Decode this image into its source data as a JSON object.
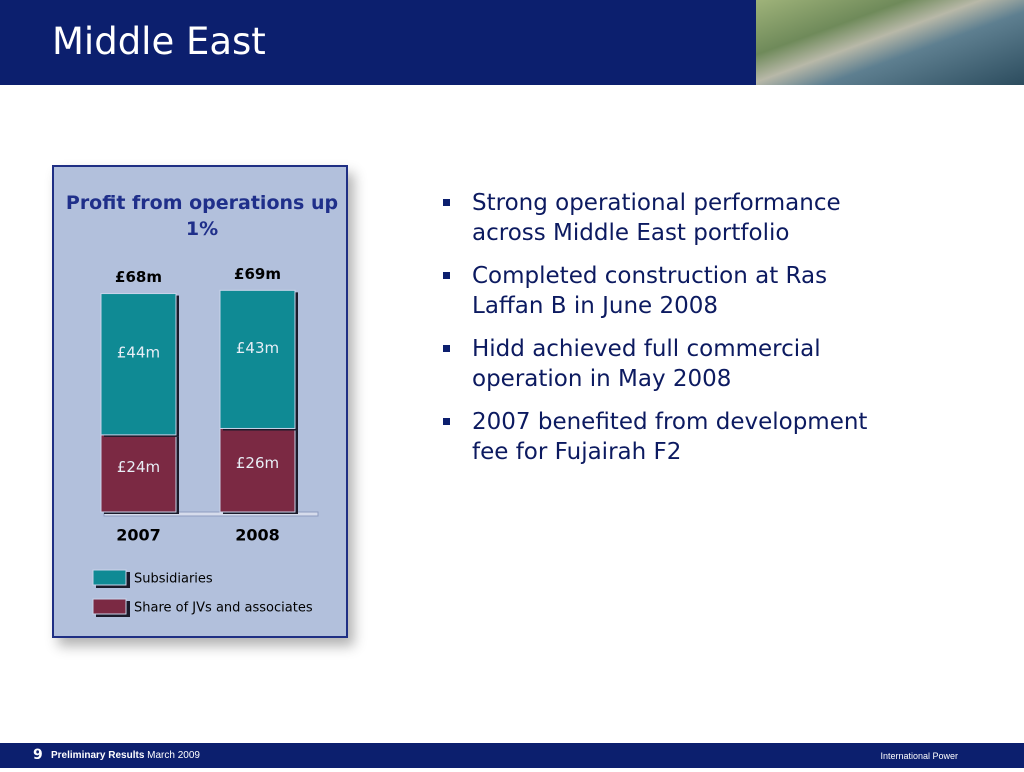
{
  "slide": {
    "title": "Middle East"
  },
  "chart_data": {
    "type": "stacked_bar",
    "title": "Profit from operations up 1%",
    "categories": [
      "2007",
      "2008"
    ],
    "series": [
      {
        "name": "Share of JVs and associates",
        "color": "#7b2943",
        "values": [
          24,
          26
        ],
        "value_labels": [
          "£24m",
          "£26m"
        ]
      },
      {
        "name": "Subsidiaries",
        "color": "#0f8a94",
        "values": [
          44,
          43
        ],
        "value_labels": [
          "£44m",
          "£43m"
        ]
      }
    ],
    "totals": {
      "values": [
        68,
        69
      ],
      "value_labels": [
        "£68m",
        "£69m"
      ]
    },
    "ylim": [
      0,
      80
    ]
  },
  "bullets": [
    "Strong operational performance across Middle East portfolio",
    "Completed construction at Ras Laffan B in June 2008",
    "Hidd achieved full commercial operation in May 2008",
    "2007 benefited from development fee for Fujairah F2"
  ],
  "footer": {
    "page": "9",
    "name": "Preliminary Results",
    "date": "March 2009",
    "company": "International Power"
  }
}
